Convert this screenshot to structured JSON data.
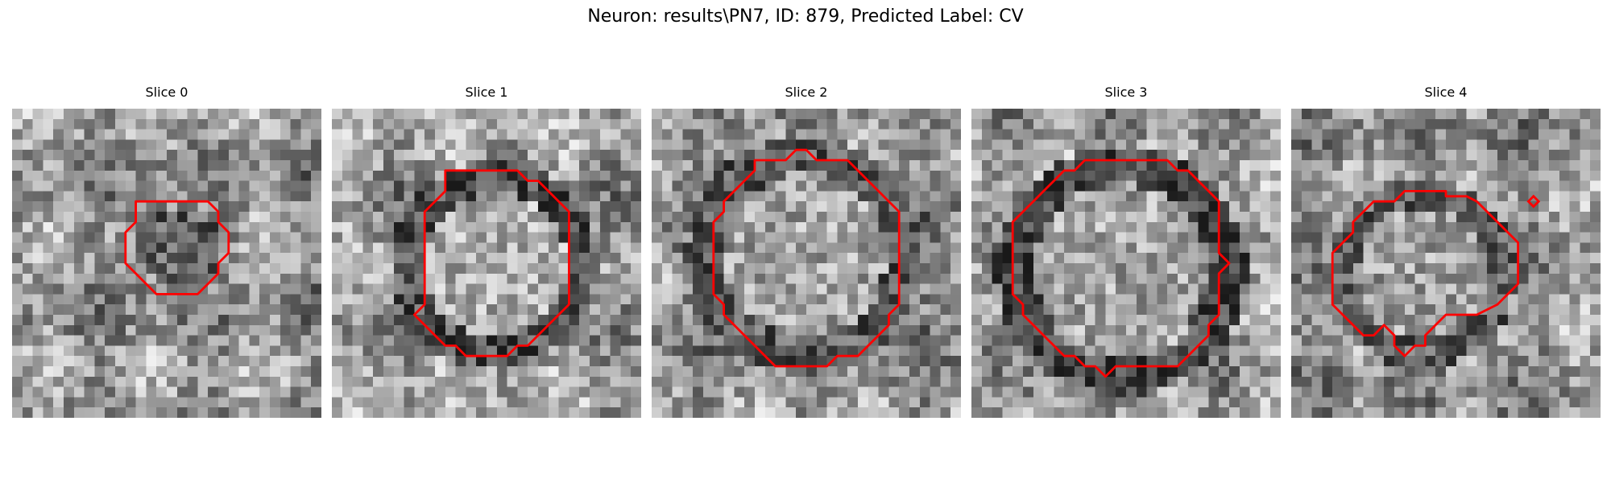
{
  "figure": {
    "title": "Neuron: results\\PN7, ID: 879, Predicted Label: CV",
    "contour_color": "#ff0000",
    "grid_size": 30,
    "colormap": "grayscale"
  },
  "slices": [
    {
      "label": "Slice 0",
      "contour": [
        [
          12,
          9
        ],
        [
          19,
          9
        ],
        [
          20,
          10
        ],
        [
          20,
          11
        ],
        [
          21,
          12
        ],
        [
          21,
          14
        ],
        [
          20,
          15
        ],
        [
          20,
          16
        ],
        [
          19,
          17
        ],
        [
          18,
          18
        ],
        [
          14,
          18
        ],
        [
          13,
          17
        ],
        [
          12,
          16
        ],
        [
          11,
          15
        ],
        [
          11,
          12
        ],
        [
          12,
          11
        ],
        [
          12,
          10
        ]
      ]
    },
    {
      "label": "Slice 1",
      "contour": [
        [
          11,
          6
        ],
        [
          15,
          6
        ],
        [
          18,
          6
        ],
        [
          19,
          7
        ],
        [
          20,
          7
        ],
        [
          21,
          8
        ],
        [
          22,
          9
        ],
        [
          23,
          10
        ],
        [
          23,
          13
        ],
        [
          23,
          19
        ],
        [
          22,
          20
        ],
        [
          21,
          21
        ],
        [
          20,
          22
        ],
        [
          19,
          23
        ],
        [
          18,
          23
        ],
        [
          17,
          24
        ],
        [
          13,
          24
        ],
        [
          12,
          23
        ],
        [
          11,
          23
        ],
        [
          10,
          22
        ],
        [
          9,
          21
        ],
        [
          8,
          20
        ],
        [
          9,
          19
        ],
        [
          9,
          10
        ],
        [
          10,
          9
        ],
        [
          11,
          8
        ],
        [
          11,
          7
        ]
      ]
    },
    {
      "label": "Slice 2",
      "contour": [
        [
          10,
          5
        ],
        [
          13,
          5
        ],
        [
          14,
          4
        ],
        [
          15,
          4
        ],
        [
          16,
          5
        ],
        [
          19,
          5
        ],
        [
          20,
          6
        ],
        [
          21,
          7
        ],
        [
          22,
          8
        ],
        [
          23,
          9
        ],
        [
          24,
          10
        ],
        [
          24,
          13
        ],
        [
          24,
          19
        ],
        [
          23,
          20
        ],
        [
          23,
          21
        ],
        [
          22,
          22
        ],
        [
          21,
          23
        ],
        [
          20,
          24
        ],
        [
          18,
          24
        ],
        [
          17,
          25
        ],
        [
          12,
          25
        ],
        [
          11,
          24
        ],
        [
          10,
          23
        ],
        [
          9,
          22
        ],
        [
          8,
          21
        ],
        [
          7,
          20
        ],
        [
          7,
          19
        ],
        [
          6,
          18
        ],
        [
          6,
          11
        ],
        [
          7,
          10
        ],
        [
          7,
          9
        ],
        [
          8,
          8
        ],
        [
          9,
          7
        ],
        [
          10,
          6
        ]
      ]
    },
    {
      "label": "Slice 3",
      "contour": [
        [
          11,
          5
        ],
        [
          19,
          5
        ],
        [
          20,
          6
        ],
        [
          21,
          6
        ],
        [
          22,
          7
        ],
        [
          23,
          8
        ],
        [
          24,
          9
        ],
        [
          24,
          12
        ],
        [
          24,
          14
        ],
        [
          25,
          15
        ],
        [
          24,
          16
        ],
        [
          24,
          20
        ],
        [
          23,
          21
        ],
        [
          23,
          22
        ],
        [
          22,
          23
        ],
        [
          21,
          24
        ],
        [
          20,
          25
        ],
        [
          14,
          25
        ],
        [
          13,
          26
        ],
        [
          12,
          25
        ],
        [
          11,
          25
        ],
        [
          10,
          24
        ],
        [
          9,
          24
        ],
        [
          8,
          23
        ],
        [
          7,
          22
        ],
        [
          6,
          21
        ],
        [
          5,
          20
        ],
        [
          5,
          19
        ],
        [
          4,
          18
        ],
        [
          4,
          11
        ],
        [
          5,
          10
        ],
        [
          6,
          9
        ],
        [
          7,
          8
        ],
        [
          8,
          7
        ],
        [
          9,
          6
        ],
        [
          10,
          6
        ]
      ]
    },
    {
      "label": "Slice 4",
      "contour": [
        [
          11,
          8
        ],
        [
          15,
          8
        ],
        [
          15,
          8.5
        ],
        [
          17,
          8.5
        ],
        [
          18,
          9
        ],
        [
          19,
          10
        ],
        [
          20,
          11
        ],
        [
          21,
          12
        ],
        [
          22,
          13
        ],
        [
          22,
          16
        ],
        [
          22,
          17
        ],
        [
          21,
          18
        ],
        [
          20,
          19
        ],
        [
          18,
          20
        ],
        [
          15,
          20
        ],
        [
          14,
          21
        ],
        [
          13,
          22
        ],
        [
          13,
          23
        ],
        [
          12,
          23
        ],
        [
          11,
          24
        ],
        [
          10,
          23
        ],
        [
          10,
          22
        ],
        [
          9,
          21
        ],
        [
          8,
          22
        ],
        [
          7,
          22
        ],
        [
          6,
          21
        ],
        [
          5,
          20
        ],
        [
          4,
          19
        ],
        [
          4,
          14
        ],
        [
          5,
          13
        ],
        [
          6,
          12
        ],
        [
          6,
          11
        ],
        [
          7,
          10
        ],
        [
          8,
          9
        ],
        [
          10,
          9
        ]
      ],
      "marker": [
        23.5,
        9
      ]
    }
  ]
}
